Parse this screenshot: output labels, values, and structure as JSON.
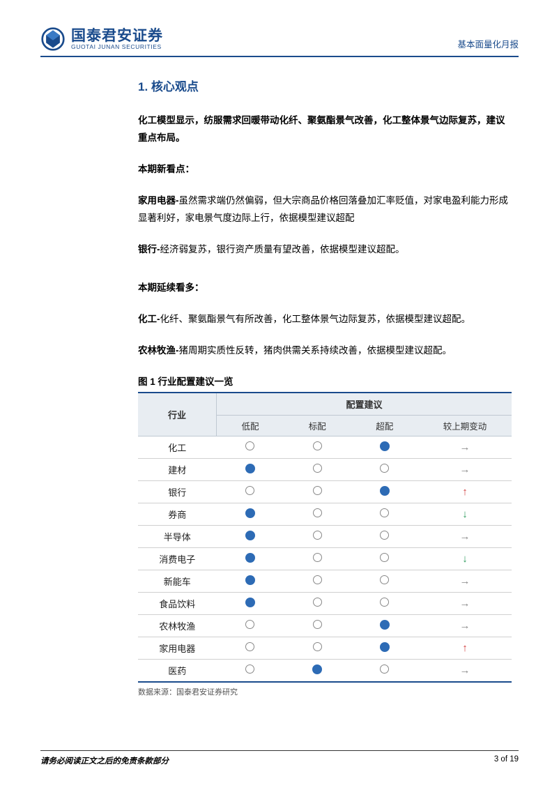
{
  "colors": {
    "brand": "#1a4b8c",
    "table_header_bg": "#e8edf2",
    "table_border": "#d0d0d0",
    "dot_fill": "#2d6bb5",
    "dot_stroke": "#888888",
    "arrow_flat": "#888888",
    "arrow_up": "#d23a3a",
    "arrow_down": "#2a9a5a",
    "page_bg": "#ffffff"
  },
  "header": {
    "logo_cn": "国泰君安证券",
    "logo_en": "GUOTAI JUNAN SECURITIES",
    "right": "基本面量化月报"
  },
  "section_title": "1.  核心观点",
  "paragraphs": {
    "p1": "化工模型显示，纺服需求回暖带动化纤、聚氨酯景气改善，化工整体景气边际复苏，建议重点布局。",
    "p2": "本期新看点：",
    "p3_b": "家用电器-",
    "p3_r": "虽然需求端仍然偏弱，但大宗商品价格回落叠加汇率贬值，对家电盈利能力形成显著利好，家电景气度边际上行，依据模型建议超配",
    "p4_b": "银行-",
    "p4_r": "经济弱复苏，银行资产质量有望改善，依据模型建议超配。",
    "p5": "本期延续看多：",
    "p6_b": "化工-",
    "p6_r": "化纤、聚氨酯景气有所改善，化工整体景气边际复苏，依据模型建议超配。",
    "p7_b": "农林牧渔-",
    "p7_r": "猪周期实质性反转，猪肉供需关系持续改善，依据模型建议超配。"
  },
  "figure": {
    "title": "图 1 行业配置建议一览",
    "source": "数据来源：国泰君安证券研究",
    "header_industry": "行业",
    "header_advice": "配置建议",
    "sub_headers": [
      "低配",
      "标配",
      "超配",
      "较上期变动"
    ],
    "rows": [
      {
        "name": "化工",
        "low": 0,
        "std": 0,
        "over": 1,
        "change": "flat"
      },
      {
        "name": "建材",
        "low": 1,
        "std": 0,
        "over": 0,
        "change": "flat"
      },
      {
        "name": "银行",
        "low": 0,
        "std": 0,
        "over": 1,
        "change": "up"
      },
      {
        "name": "券商",
        "low": 1,
        "std": 0,
        "over": 0,
        "change": "down"
      },
      {
        "name": "半导体",
        "low": 1,
        "std": 0,
        "over": 0,
        "change": "flat"
      },
      {
        "name": "消费电子",
        "low": 1,
        "std": 0,
        "over": 0,
        "change": "down"
      },
      {
        "name": "新能车",
        "low": 1,
        "std": 0,
        "over": 0,
        "change": "flat"
      },
      {
        "name": "食品饮料",
        "low": 1,
        "std": 0,
        "over": 0,
        "change": "flat"
      },
      {
        "name": "农林牧渔",
        "low": 0,
        "std": 0,
        "over": 1,
        "change": "flat"
      },
      {
        "name": "家用电器",
        "low": 0,
        "std": 0,
        "over": 1,
        "change": "up"
      },
      {
        "name": "医药",
        "low": 0,
        "std": 1,
        "over": 0,
        "change": "flat"
      }
    ]
  },
  "footer": {
    "left": "请务必阅读正文之后的免责条款部分",
    "right": "3 of 19"
  }
}
